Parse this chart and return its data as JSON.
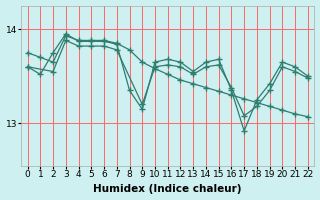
{
  "background_color": "#cff0f0",
  "grid_color": "#ff6666",
  "line_color": "#2e7d6e",
  "marker": "+",
  "xlabel": "Humidex (Indice chaleur)",
  "ytick_values": [
    13,
    14
  ],
  "xlim": [
    -0.5,
    22.5
  ],
  "ylim": [
    12.55,
    14.25
  ],
  "series": [
    {
      "x": [
        0,
        1,
        2,
        3,
        4,
        5,
        6,
        7,
        8,
        9,
        10,
        11,
        12,
        13,
        14,
        15,
        16,
        17,
        18,
        19,
        20,
        21,
        22
      ],
      "y": [
        13.75,
        13.7,
        13.65,
        13.93,
        13.88,
        13.88,
        13.88,
        13.85,
        13.78,
        13.65,
        13.58,
        13.52,
        13.46,
        13.42,
        13.38,
        13.34,
        13.3,
        13.26,
        13.22,
        13.18,
        13.14,
        13.1,
        13.07
      ]
    },
    {
      "x": [
        0,
        1,
        2,
        3,
        4,
        5,
        6,
        7,
        8,
        9,
        10,
        11,
        12,
        13,
        14,
        15,
        16,
        17,
        18,
        19,
        20,
        21,
        22
      ],
      "y": [
        13.6,
        13.52,
        13.75,
        13.95,
        13.87,
        13.87,
        13.87,
        13.84,
        13.35,
        13.15,
        13.65,
        13.68,
        13.65,
        13.55,
        13.65,
        13.68,
        13.35,
        12.92,
        13.25,
        13.42,
        13.65,
        13.6,
        13.5
      ]
    },
    {
      "x": [
        0,
        2,
        3,
        4,
        5,
        6,
        7,
        9,
        10,
        11,
        12,
        13,
        14,
        15,
        16,
        17,
        18,
        19,
        20,
        21,
        22
      ],
      "y": [
        13.6,
        13.55,
        13.88,
        13.82,
        13.82,
        13.82,
        13.78,
        13.2,
        13.6,
        13.62,
        13.6,
        13.52,
        13.6,
        13.62,
        13.38,
        13.08,
        13.18,
        13.35,
        13.6,
        13.55,
        13.48
      ]
    }
  ],
  "xtick_labels": [
    "0",
    "1",
    "2",
    "3",
    "4",
    "5",
    "6",
    "7",
    "8",
    "9",
    "10",
    "11",
    "12",
    "13",
    "14",
    "15",
    "16",
    "17",
    "18",
    "19",
    "20",
    "21",
    "22"
  ],
  "tick_fontsize": 6.5,
  "label_fontsize": 7.5
}
